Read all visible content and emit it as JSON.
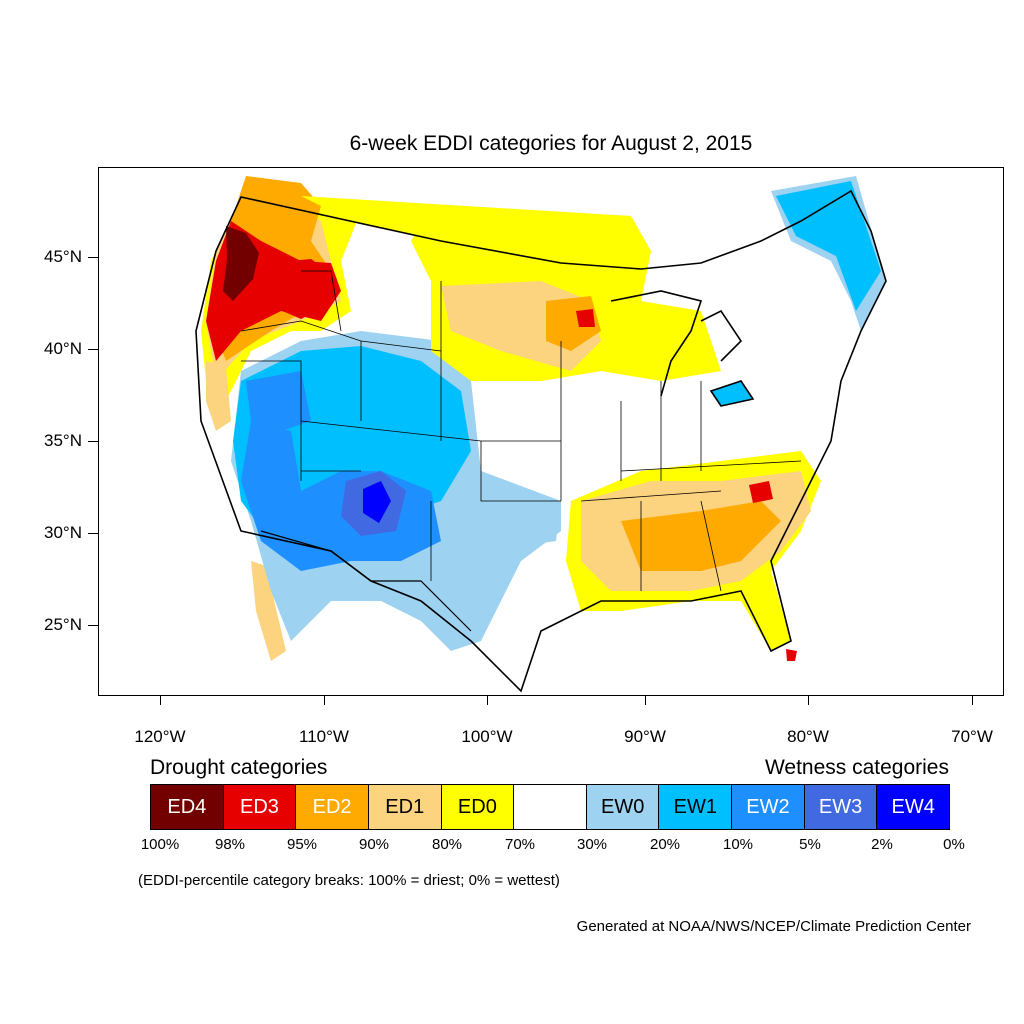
{
  "title": "6-week EDDI categories for August 2, 2015",
  "lat_labels": [
    "45°N",
    "40°N",
    "35°N",
    "30°N",
    "25°N"
  ],
  "lon_labels": [
    "120°W",
    "110°W",
    "100°W",
    "90°W",
    "80°W",
    "70°W"
  ],
  "legend": {
    "drought_heading": "Drought categories",
    "wetness_heading": "Wetness categories",
    "categories": [
      {
        "label": "ED4",
        "color": "#730000",
        "text_color": "#ffffff"
      },
      {
        "label": "ED3",
        "color": "#e60000",
        "text_color": "#ffffff"
      },
      {
        "label": "ED2",
        "color": "#ffaa00",
        "text_color": "#ffffff"
      },
      {
        "label": "ED1",
        "color": "#fcd37f",
        "text_color": "#000000"
      },
      {
        "label": "ED0",
        "color": "#ffff00",
        "text_color": "#000000"
      },
      {
        "label": "",
        "color": "#ffffff",
        "text_color": "#000000"
      },
      {
        "label": "EW0",
        "color": "#9dd2f0",
        "text_color": "#000000"
      },
      {
        "label": "EW1",
        "color": "#00bfff",
        "text_color": "#000000"
      },
      {
        "label": "EW2",
        "color": "#1e8fff",
        "text_color": "#ffffff"
      },
      {
        "label": "EW3",
        "color": "#4169e1",
        "text_color": "#ffffff"
      },
      {
        "label": "EW4",
        "color": "#0000ff",
        "text_color": "#ffffff"
      }
    ],
    "percentiles": [
      "100%",
      "98%",
      "95%",
      "90%",
      "80%",
      "70%",
      "30%",
      "20%",
      "10%",
      "5%",
      "2%",
      "0%"
    ]
  },
  "note": "(EDDI-percentile category breaks: 100% = driest; 0% = wettest)",
  "credit": "Generated at NOAA/NWS/NCEP/Climate Prediction Center"
}
